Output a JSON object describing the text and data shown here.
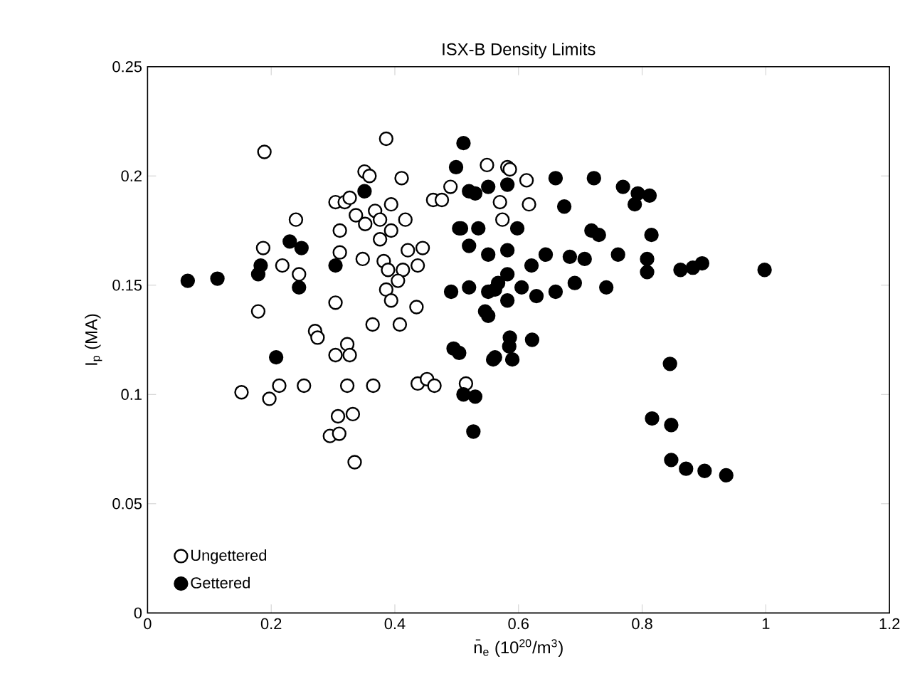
{
  "chart_data": {
    "type": "scatter",
    "title": "ISX-B Density Limits",
    "xlabel": "n̄$_{e}$    (10$^{20}$/m$^{3}$)",
    "ylabel": "I$_{p}$ (MA)",
    "xlim": [
      0,
      1.2
    ],
    "xticks": [
      0,
      0.2,
      0.4,
      0.6,
      0.8,
      1,
      1.2
    ],
    "ylim": [
      0,
      0.25
    ],
    "yticks": [
      0,
      0.05,
      0.1,
      0.15,
      0.2,
      0.25
    ],
    "legend": "bottom left",
    "grid": false,
    "series": [
      {
        "name": "Ungettered",
        "color": "#000000",
        "marker": "circle",
        "x": [
          0.189,
          0.386,
          0.351,
          0.359,
          0.411,
          0.24,
          0.304,
          0.319,
          0.327,
          0.394,
          0.417,
          0.311,
          0.337,
          0.352,
          0.368,
          0.376,
          0.394,
          0.376,
          0.187,
          0.311,
          0.218,
          0.245,
          0.348,
          0.382,
          0.389,
          0.413,
          0.405,
          0.421,
          0.445,
          0.437,
          0.386,
          0.394,
          0.304,
          0.435,
          0.179,
          0.364,
          0.408,
          0.271,
          0.275,
          0.304,
          0.323,
          0.327,
          0.152,
          0.197,
          0.213,
          0.253,
          0.323,
          0.365,
          0.437,
          0.452,
          0.464,
          0.515,
          0.308,
          0.332,
          0.295,
          0.31,
          0.335,
          0.462,
          0.476,
          0.49,
          0.549,
          0.582,
          0.586,
          0.613,
          0.617,
          0.57,
          0.574
        ],
        "values": [
          0.211,
          0.217,
          0.202,
          0.2,
          0.199,
          0.18,
          0.188,
          0.188,
          0.19,
          0.187,
          0.18,
          0.175,
          0.182,
          0.178,
          0.184,
          0.18,
          0.175,
          0.171,
          0.167,
          0.165,
          0.159,
          0.155,
          0.162,
          0.161,
          0.157,
          0.157,
          0.152,
          0.166,
          0.167,
          0.159,
          0.148,
          0.143,
          0.142,
          0.14,
          0.138,
          0.132,
          0.132,
          0.129,
          0.126,
          0.118,
          0.123,
          0.118,
          0.101,
          0.098,
          0.104,
          0.104,
          0.104,
          0.104,
          0.105,
          0.107,
          0.104,
          0.105,
          0.09,
          0.091,
          0.081,
          0.082,
          0.069,
          0.189,
          0.189,
          0.195,
          0.205,
          0.204,
          0.203,
          0.198,
          0.187,
          0.188,
          0.18
        ]
      },
      {
        "name": "Gettered",
        "color": "#000000",
        "marker": "filled circle",
        "x": [
          0.065,
          0.113,
          0.179,
          0.183,
          0.23,
          0.249,
          0.245,
          0.208,
          0.304,
          0.351,
          0.499,
          0.511,
          0.495,
          0.53,
          0.511,
          0.527,
          0.491,
          0.507,
          0.546,
          0.585,
          0.562,
          0.562,
          0.53,
          0.66,
          0.722,
          0.769,
          0.793,
          0.812,
          0.788,
          0.674,
          0.718,
          0.73,
          0.815,
          0.761,
          0.808,
          0.808,
          0.862,
          0.882,
          0.897,
          0.998,
          0.742,
          0.707,
          0.683,
          0.644,
          0.621,
          0.582,
          0.551,
          0.52,
          0.567,
          0.605,
          0.551,
          0.582,
          0.629,
          0.66,
          0.691,
          0.504,
          0.535,
          0.598,
          0.52,
          0.551,
          0.582,
          0.52,
          0.551,
          0.582,
          0.586,
          0.622,
          0.559,
          0.59,
          0.504,
          0.845,
          0.816,
          0.847,
          0.847,
          0.871,
          0.901,
          0.936
        ],
        "values": [
          0.152,
          0.153,
          0.155,
          0.159,
          0.17,
          0.167,
          0.149,
          0.117,
          0.159,
          0.193,
          0.204,
          0.215,
          0.121,
          0.099,
          0.1,
          0.083,
          0.147,
          0.176,
          0.138,
          0.122,
          0.117,
          0.148,
          0.192,
          0.199,
          0.199,
          0.195,
          0.192,
          0.191,
          0.187,
          0.186,
          0.175,
          0.173,
          0.173,
          0.164,
          0.162,
          0.156,
          0.157,
          0.158,
          0.16,
          0.157,
          0.149,
          0.162,
          0.163,
          0.164,
          0.159,
          0.155,
          0.147,
          0.149,
          0.151,
          0.149,
          0.136,
          0.143,
          0.145,
          0.147,
          0.151,
          0.176,
          0.176,
          0.176,
          0.168,
          0.164,
          0.166,
          0.193,
          0.195,
          0.196,
          0.126,
          0.125,
          0.116,
          0.116,
          0.119,
          0.114,
          0.089,
          0.086,
          0.07,
          0.066,
          0.065,
          0.063
        ]
      }
    ]
  }
}
